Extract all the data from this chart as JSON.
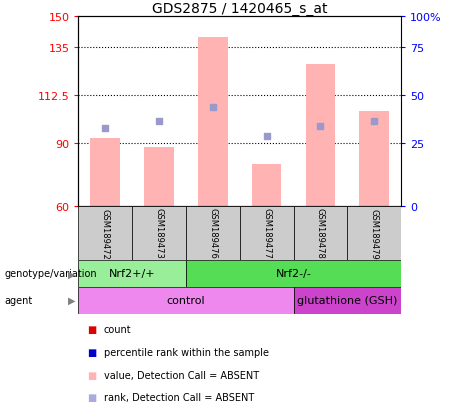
{
  "title": "GDS2875 / 1420465_s_at",
  "samples": [
    "GSM189472",
    "GSM189473",
    "GSM189476",
    "GSM189477",
    "GSM189478",
    "GSM189479"
  ],
  "bar_values": [
    92,
    88,
    140,
    80,
    127,
    105
  ],
  "marker_values": [
    97,
    100,
    107,
    93,
    98,
    100
  ],
  "y_min": 60,
  "y_max": 150,
  "y_ticks_left": [
    60,
    90,
    112.5,
    135,
    150
  ],
  "y_ticks_right": [
    0,
    25,
    50,
    75,
    100
  ],
  "y_ticks_right_vals": [
    60,
    90,
    112.5,
    135,
    150
  ],
  "bar_color": "#FFB3B3",
  "marker_color": "#9999CC",
  "genotype_groups": [
    {
      "label": "Nrf2+/+",
      "start": 0,
      "end": 2,
      "color": "#99EE99"
    },
    {
      "label": "Nrf2-/-",
      "start": 2,
      "end": 6,
      "color": "#55DD55"
    }
  ],
  "agent_groups": [
    {
      "label": "control",
      "start": 0,
      "end": 4,
      "color": "#EE88EE"
    },
    {
      "label": "glutathione (GSH)",
      "start": 4,
      "end": 6,
      "color": "#CC44CC"
    }
  ],
  "grid_yticks": [
    90,
    112.5,
    135
  ],
  "sample_box_color": "#CCCCCC",
  "legend_items": [
    {
      "label": "count",
      "color": "#DD0000"
    },
    {
      "label": "percentile rank within the sample",
      "color": "#0000CC"
    },
    {
      "label": "value, Detection Call = ABSENT",
      "color": "#FFB3B3"
    },
    {
      "label": "rank, Detection Call = ABSENT",
      "color": "#AAAADD"
    }
  ]
}
